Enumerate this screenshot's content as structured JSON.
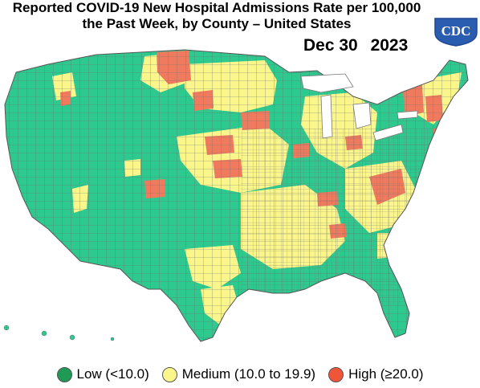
{
  "title": {
    "line1": "Reported COVID-19 New Hospital Admissions Rate per 100,000",
    "line2": "the Past Week, by County – United States"
  },
  "date": {
    "month_day": "Dec 30",
    "year": "2023"
  },
  "logo": {
    "text": "CDC"
  },
  "colors": {
    "low": "#2ec98e",
    "medium": "#fbf68c",
    "high": "#f07a5e",
    "county_border": "#777777",
    "logo_blue": "#2a5db0"
  },
  "legend": [
    {
      "key": "low",
      "label": "Low (<10.0)",
      "color": "#1f9a55"
    },
    {
      "key": "medium",
      "label": "Medium (10.0 to 19.9)",
      "color": "#fbf68c"
    },
    {
      "key": "high",
      "label": "High (≥20.0)",
      "color": "#f0553a"
    }
  ]
}
